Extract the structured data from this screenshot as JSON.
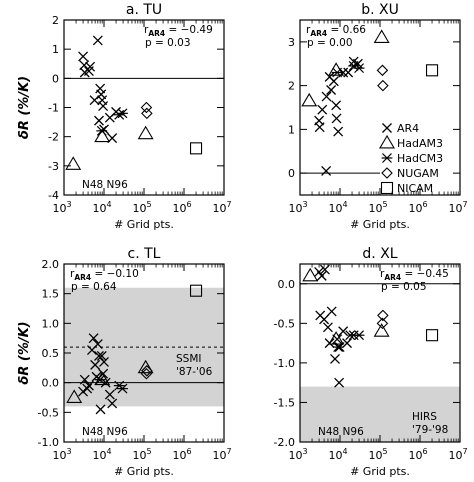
{
  "chart_data": [
    {
      "type": "scatter",
      "title": "a. TU",
      "xlabel": "# Grid pts.",
      "ylabel": "δR (%/K)",
      "xscale": "log",
      "xlim": [
        1000,
        10000000
      ],
      "ylim": [
        -4,
        2
      ],
      "xticks": [
        {
          "v": 1000,
          "base": "10",
          "exp": "3"
        },
        {
          "v": 10000,
          "base": "10",
          "exp": "4"
        },
        {
          "v": 100000,
          "base": "10",
          "exp": "5"
        },
        {
          "v": 1000000,
          "base": "10",
          "exp": "6"
        },
        {
          "v": 10000000,
          "base": "10",
          "exp": "7"
        }
      ],
      "yticks": [
        "-4",
        "-3",
        "-2",
        "-1",
        "0",
        "1",
        "2"
      ],
      "ytick_values": [
        -4,
        -3,
        -2,
        -1,
        0,
        1,
        2
      ],
      "zero_line": true,
      "stats": {
        "r_line": "r",
        "r_sub": "AR4",
        "r_value": " = −0.49",
        "p_line": "p = 0.03",
        "position": "top-right"
      },
      "grid_note": "N48  N96",
      "series": [
        {
          "marker": "x",
          "points": [
            [
              3000,
              0.75
            ],
            [
              3200,
              0.45
            ],
            [
              3300,
              0.2
            ],
            [
              4200,
              0.25
            ],
            [
              4500,
              0.4
            ],
            [
              7000,
              1.3
            ],
            [
              5800,
              -0.75
            ],
            [
              8000,
              -0.35
            ],
            [
              8500,
              -0.55
            ],
            [
              9000,
              -0.75
            ],
            [
              9500,
              -0.95
            ],
            [
              10000,
              -1.75
            ],
            [
              7500,
              -1.45
            ],
            [
              14000,
              -1.35
            ],
            [
              16000,
              -2.05
            ],
            [
              20000,
              -1.15
            ]
          ]
        },
        {
          "marker": "triangle",
          "points": [
            [
              1700,
              -2.95
            ],
            [
              9000,
              -2.0
            ],
            [
              110000,
              -1.9
            ]
          ]
        },
        {
          "marker": "asterisk",
          "points": [
            [
              8800,
              -1.8
            ],
            [
              24000,
              -1.25
            ],
            [
              29000,
              -1.2
            ]
          ]
        },
        {
          "marker": "diamond",
          "points": [
            [
              115000,
              -1.0
            ],
            [
              118000,
              -1.2
            ]
          ]
        },
        {
          "marker": "square",
          "points": [
            [
              2000000,
              -2.4
            ]
          ]
        }
      ]
    },
    {
      "type": "scatter",
      "title": "b. XU",
      "xlabel": "# Grid pts.",
      "ylabel": "",
      "xscale": "log",
      "xlim": [
        1000,
        10000000
      ],
      "ylim": [
        -0.5,
        3.5
      ],
      "xticks": [
        {
          "v": 1000,
          "base": "10",
          "exp": "3"
        },
        {
          "v": 10000,
          "base": "10",
          "exp": "4"
        },
        {
          "v": 100000,
          "base": "10",
          "exp": "5"
        },
        {
          "v": 1000000,
          "base": "10",
          "exp": "6"
        },
        {
          "v": 10000000,
          "base": "10",
          "exp": "7"
        }
      ],
      "yticks": [
        "0",
        "1",
        "2",
        "3"
      ],
      "ytick_values": [
        0,
        1,
        2,
        3
      ],
      "zero_line": true,
      "zero_line_end": 100000,
      "stats": {
        "r_line": "r",
        "r_sub": "AR4",
        "r_value": " = 0.66",
        "p_line": "p = 0.00",
        "position": "top-left"
      },
      "legend": [
        {
          "marker": "x",
          "label": "AR4"
        },
        {
          "marker": "triangle",
          "label": "HadAM3"
        },
        {
          "marker": "asterisk",
          "label": "HadCM3"
        },
        {
          "marker": "diamond",
          "label": "NUGAM"
        },
        {
          "marker": "square",
          "label": "NICAM"
        }
      ],
      "series": [
        {
          "marker": "x",
          "points": [
            [
              3000,
              1.2
            ],
            [
              3100,
              1.05
            ],
            [
              3600,
              1.45
            ],
            [
              4500,
              0.05
            ],
            [
              4600,
              1.75
            ],
            [
              5500,
              2.2
            ],
            [
              6000,
              1.9
            ],
            [
              7000,
              2.1
            ],
            [
              8000,
              1.55
            ],
            [
              8200,
              1.25
            ],
            [
              9000,
              0.95
            ],
            [
              16000,
              2.3
            ],
            [
              22000,
              2.55
            ],
            [
              28000,
              2.5
            ],
            [
              12000,
              2.3
            ]
          ]
        },
        {
          "marker": "triangle",
          "points": [
            [
              1700,
              1.65
            ],
            [
              8000,
              2.35
            ],
            [
              110000,
              3.1
            ]
          ]
        },
        {
          "marker": "asterisk",
          "points": [
            [
              8500,
              2.3
            ],
            [
              22000,
              2.45
            ],
            [
              30000,
              2.4
            ]
          ]
        },
        {
          "marker": "diamond",
          "points": [
            [
              115000,
              2.35
            ],
            [
              118000,
              2.0
            ]
          ]
        },
        {
          "marker": "square",
          "points": [
            [
              2000000,
              2.35
            ]
          ]
        }
      ]
    },
    {
      "type": "scatter",
      "title": "c. TL",
      "xlabel": "# Grid pts.",
      "ylabel": "δR (%/K)",
      "xscale": "log",
      "xlim": [
        1000,
        10000000
      ],
      "ylim": [
        -1.0,
        2.0
      ],
      "xticks": [
        {
          "v": 1000,
          "base": "10",
          "exp": "3"
        },
        {
          "v": 10000,
          "base": "10",
          "exp": "4"
        },
        {
          "v": 100000,
          "base": "10",
          "exp": "5"
        },
        {
          "v": 1000000,
          "base": "10",
          "exp": "6"
        },
        {
          "v": 10000000,
          "base": "10",
          "exp": "7"
        }
      ],
      "yticks": [
        "-1.0",
        "-0.5",
        "0.0",
        "0.5",
        "1.0",
        "1.5",
        "2.0"
      ],
      "ytick_values": [
        -1.0,
        -0.5,
        0.0,
        0.5,
        1.0,
        1.5,
        2.0
      ],
      "zero_line": true,
      "shade": [
        -0.4,
        1.6
      ],
      "dashed_y": 0.6,
      "shade_label": [
        "SSMI",
        "'87-'06"
      ],
      "stats": {
        "r_line": "r",
        "r_sub": "AR4",
        "r_value": " = −0.10",
        "p_line": "p = 0.64",
        "position": "top-left"
      },
      "grid_note": "N48  N96",
      "series": [
        {
          "marker": "x",
          "points": [
            [
              3000,
              -0.15
            ],
            [
              3300,
              0.05
            ],
            [
              3800,
              -0.1
            ],
            [
              4200,
              -0.05
            ],
            [
              5500,
              0.75
            ],
            [
              6000,
              0.3
            ],
            [
              6500,
              0.1
            ],
            [
              7000,
              0.65
            ],
            [
              7500,
              0.45
            ],
            [
              8200,
              -0.45
            ],
            [
              8800,
              0.45
            ],
            [
              9500,
              0.15
            ],
            [
              10000,
              0.35
            ],
            [
              11000,
              0.0
            ],
            [
              14000,
              -0.2
            ],
            [
              16000,
              -0.35
            ],
            [
              5000,
              0.55
            ]
          ]
        },
        {
          "marker": "triangle",
          "points": [
            [
              1800,
              -0.25
            ],
            [
              9000,
              0.05
            ],
            [
              110000,
              0.25
            ]
          ]
        },
        {
          "marker": "asterisk",
          "points": [
            [
              8000,
              0.05
            ],
            [
              24000,
              -0.05
            ],
            [
              29000,
              -0.1
            ]
          ]
        },
        {
          "marker": "diamond",
          "points": [
            [
              115000,
              0.15
            ],
            [
              118000,
              0.2
            ]
          ]
        },
        {
          "marker": "square",
          "points": [
            [
              2000000,
              1.55
            ]
          ]
        }
      ]
    },
    {
      "type": "scatter",
      "title": "d. XL",
      "xlabel": "# Grid pts.",
      "ylabel": "",
      "xscale": "log",
      "xlim": [
        1000,
        10000000
      ],
      "ylim": [
        -2.0,
        0.25
      ],
      "xticks": [
        {
          "v": 1000,
          "base": "10",
          "exp": "3"
        },
        {
          "v": 10000,
          "base": "10",
          "exp": "4"
        },
        {
          "v": 100000,
          "base": "10",
          "exp": "5"
        },
        {
          "v": 1000000,
          "base": "10",
          "exp": "6"
        },
        {
          "v": 10000000,
          "base": "10",
          "exp": "7"
        }
      ],
      "yticks": [
        "-2.0",
        "-1.5",
        "-1.0",
        "-0.5",
        "0.0"
      ],
      "ytick_values": [
        -2.0,
        -1.5,
        -1.0,
        -0.5,
        0.0
      ],
      "zero_line": true,
      "shade": [
        -2.0,
        -1.3
      ],
      "shade_label": [
        "HIRS",
        "'79-'98"
      ],
      "stats": {
        "r_line": "r",
        "r_sub": "AR4",
        "r_value": " = −0.45",
        "p_line": "p = 0.05",
        "position": "top-right"
      },
      "grid_note": "N48  N96",
      "series": [
        {
          "marker": "x",
          "points": [
            [
              3000,
              0.15
            ],
            [
              3500,
              0.1
            ],
            [
              4200,
              0.18
            ],
            [
              3200,
              -0.4
            ],
            [
              4000,
              -0.45
            ],
            [
              5000,
              -0.55
            ],
            [
              5500,
              -0.75
            ],
            [
              6200,
              -0.35
            ],
            [
              7500,
              -0.95
            ],
            [
              8500,
              -0.7
            ],
            [
              9500,
              -1.25
            ],
            [
              9800,
              -0.8
            ],
            [
              12000,
              -0.6
            ],
            [
              15000,
              -0.75
            ],
            [
              18000,
              -0.65
            ]
          ]
        },
        {
          "marker": "triangle",
          "points": [
            [
              1800,
              0.1
            ],
            [
              8000,
              -0.7
            ],
            [
              110000,
              -0.6
            ]
          ]
        },
        {
          "marker": "asterisk",
          "points": [
            [
              9000,
              -0.8
            ],
            [
              22000,
              -0.65
            ],
            [
              30000,
              -0.65
            ]
          ]
        },
        {
          "marker": "diamond",
          "points": [
            [
              115000,
              -0.5
            ],
            [
              118000,
              -0.4
            ]
          ]
        },
        {
          "marker": "square",
          "points": [
            [
              2000000,
              -0.65
            ]
          ]
        }
      ]
    }
  ]
}
